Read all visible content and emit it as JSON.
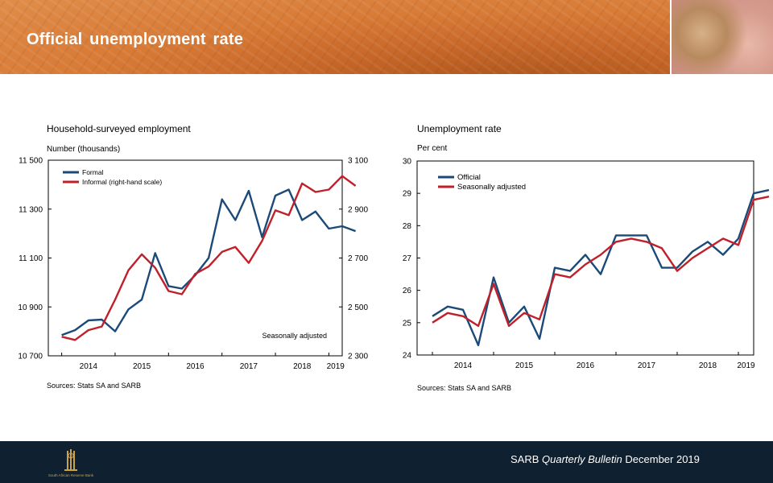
{
  "header": {
    "title": "Official  unemployment rate"
  },
  "footer": {
    "prefix": "SARB",
    "italic1": "Quarterly",
    "italic2": "Bulletin",
    "suffix": "December 2019",
    "logo_text": "South African Reserve Bank"
  },
  "chart_data": [
    {
      "type": "line",
      "title": "Household-surveyed employment",
      "ylabel": "Number (thousands)",
      "note": "Seasonally adjusted",
      "source": "Sources: Stats SA and SARB",
      "xlim": [
        2013.75,
        2019.25
      ],
      "x_ticks": [
        "2014",
        "2015",
        "2016",
        "2017",
        "2018",
        "2019"
      ],
      "ylim_left": [
        10700,
        11500
      ],
      "yticks_left": [
        "10 700",
        "10 900",
        "11 100",
        "11 300",
        "11 500"
      ],
      "ylim_right": [
        2300,
        3100
      ],
      "yticks_right": [
        "2 300",
        "2 500",
        "2 700",
        "2 900",
        "3 100"
      ],
      "x": [
        2014.0,
        2014.25,
        2014.5,
        2014.75,
        2015.0,
        2015.25,
        2015.5,
        2015.75,
        2016.0,
        2016.25,
        2016.5,
        2016.75,
        2017.0,
        2017.25,
        2017.5,
        2017.75,
        2018.0,
        2018.25,
        2018.5,
        2018.75,
        2019.0,
        2019.25,
        2019.5
      ],
      "series": [
        {
          "name": "Formal",
          "axis": "left",
          "color": "#1c4a78",
          "values": [
            10785,
            10805,
            10845,
            10848,
            10800,
            10890,
            10930,
            11120,
            10985,
            10975,
            11030,
            11100,
            11340,
            11255,
            11375,
            11185,
            11355,
            11380,
            11255,
            11290,
            11220,
            11230,
            11210
          ]
        },
        {
          "name": "Informal (right-hand scale)",
          "axis": "right",
          "color": "#c0202a",
          "values": [
            2378,
            2365,
            2405,
            2420,
            2530,
            2650,
            2715,
            2660,
            2565,
            2552,
            2635,
            2665,
            2725,
            2745,
            2680,
            2770,
            2895,
            2875,
            3005,
            2970,
            2980,
            3035,
            2995
          ]
        }
      ]
    },
    {
      "type": "line",
      "title": "Unemployment rate",
      "ylabel": "Per cent",
      "source": "Sources: Stats SA and SARB",
      "xlim": [
        2013.75,
        2019.25
      ],
      "x_ticks": [
        "2014",
        "2015",
        "2016",
        "2017",
        "2018",
        "2019"
      ],
      "ylim": [
        24,
        30
      ],
      "yticks": [
        "24",
        "25",
        "26",
        "27",
        "28",
        "29",
        "30"
      ],
      "x": [
        2014.0,
        2014.25,
        2014.5,
        2014.75,
        2015.0,
        2015.25,
        2015.5,
        2015.75,
        2016.0,
        2016.25,
        2016.5,
        2016.75,
        2017.0,
        2017.25,
        2017.5,
        2017.75,
        2018.0,
        2018.25,
        2018.5,
        2018.75,
        2019.0,
        2019.25,
        2019.5
      ],
      "series": [
        {
          "name": "Official",
          "color": "#1c4a78",
          "values": [
            25.2,
            25.5,
            25.4,
            24.3,
            26.4,
            25.0,
            25.5,
            24.5,
            26.7,
            26.6,
            27.1,
            26.5,
            27.7,
            27.7,
            27.7,
            26.7,
            26.7,
            27.2,
            27.5,
            27.1,
            27.6,
            29.0,
            29.1
          ]
        },
        {
          "name": "Seasonally adjusted",
          "color": "#c0202a",
          "values": [
            25.0,
            25.3,
            25.2,
            24.9,
            26.2,
            24.9,
            25.3,
            25.1,
            26.5,
            26.4,
            26.8,
            27.1,
            27.5,
            27.6,
            27.5,
            27.3,
            26.6,
            27.0,
            27.3,
            27.6,
            27.4,
            28.8,
            28.9
          ]
        }
      ]
    }
  ]
}
